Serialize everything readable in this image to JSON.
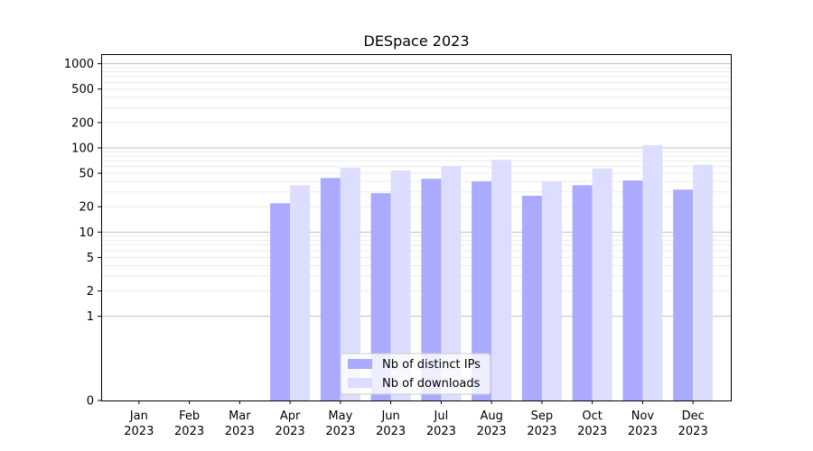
{
  "chart_data": {
    "type": "bar",
    "title": "DESpace 2023",
    "xlabel": "",
    "ylabel": "",
    "y_scale": "symlog",
    "ylim": [
      0,
      1300
    ],
    "y_ticks": [
      0,
      1,
      2,
      5,
      10,
      20,
      50,
      100,
      200,
      500,
      1000
    ],
    "y_tick_labels": [
      "0",
      "1",
      "2",
      "5",
      "10",
      "20",
      "50",
      "100",
      "200",
      "500",
      "1000"
    ],
    "categories": [
      {
        "month": "Jan",
        "year": "2023"
      },
      {
        "month": "Feb",
        "year": "2023"
      },
      {
        "month": "Mar",
        "year": "2023"
      },
      {
        "month": "Apr",
        "year": "2023"
      },
      {
        "month": "May",
        "year": "2023"
      },
      {
        "month": "Jun",
        "year": "2023"
      },
      {
        "month": "Jul",
        "year": "2023"
      },
      {
        "month": "Aug",
        "year": "2023"
      },
      {
        "month": "Sep",
        "year": "2023"
      },
      {
        "month": "Oct",
        "year": "2023"
      },
      {
        "month": "Nov",
        "year": "2023"
      },
      {
        "month": "Dec",
        "year": "2023"
      }
    ],
    "series": [
      {
        "name": "Nb of distinct IPs",
        "color": "#aaaaff",
        "values": [
          0,
          0,
          0,
          22,
          44,
          29,
          43,
          40,
          27,
          36,
          41,
          32
        ]
      },
      {
        "name": "Nb of downloads",
        "color": "#ddddff",
        "values": [
          0,
          0,
          0,
          36,
          58,
          54,
          61,
          72,
          40,
          57,
          108,
          63
        ]
      }
    ],
    "grid": true,
    "legend_position": "lower-center"
  }
}
